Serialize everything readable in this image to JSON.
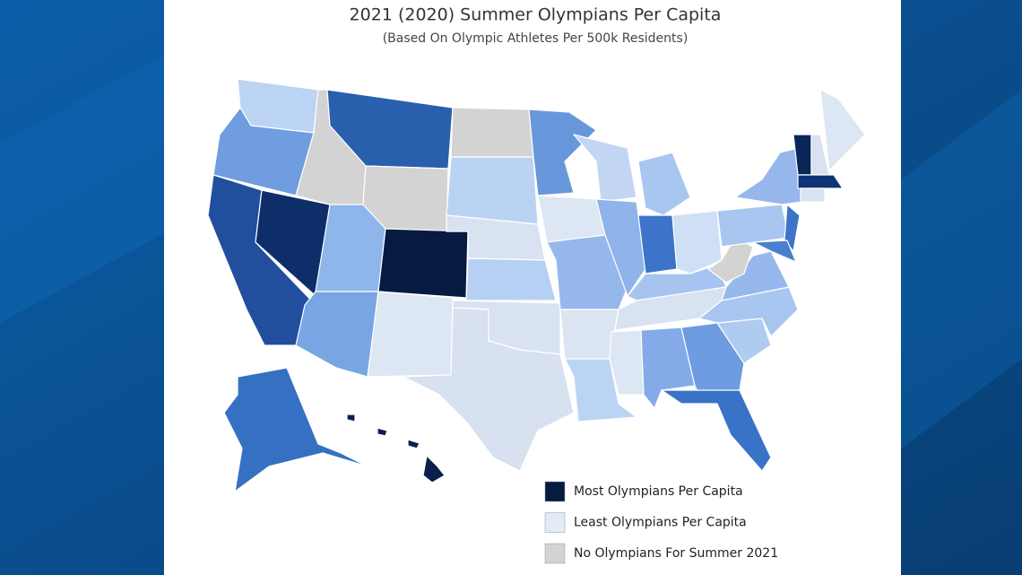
{
  "header": {
    "title": "2021 (2020) Summer Olympians Per Capita",
    "subtitle": "(Based On Olympic Athletes Per 500k Residents)"
  },
  "legend": [
    {
      "label": "Most Olympians Per Capita",
      "color": "#061a42"
    },
    {
      "label": "Least Olympians Per Capita",
      "color": "#e3ebf7"
    },
    {
      "label": "No Olympians For Summer 2021",
      "color": "#d3d3d3"
    }
  ]
}
